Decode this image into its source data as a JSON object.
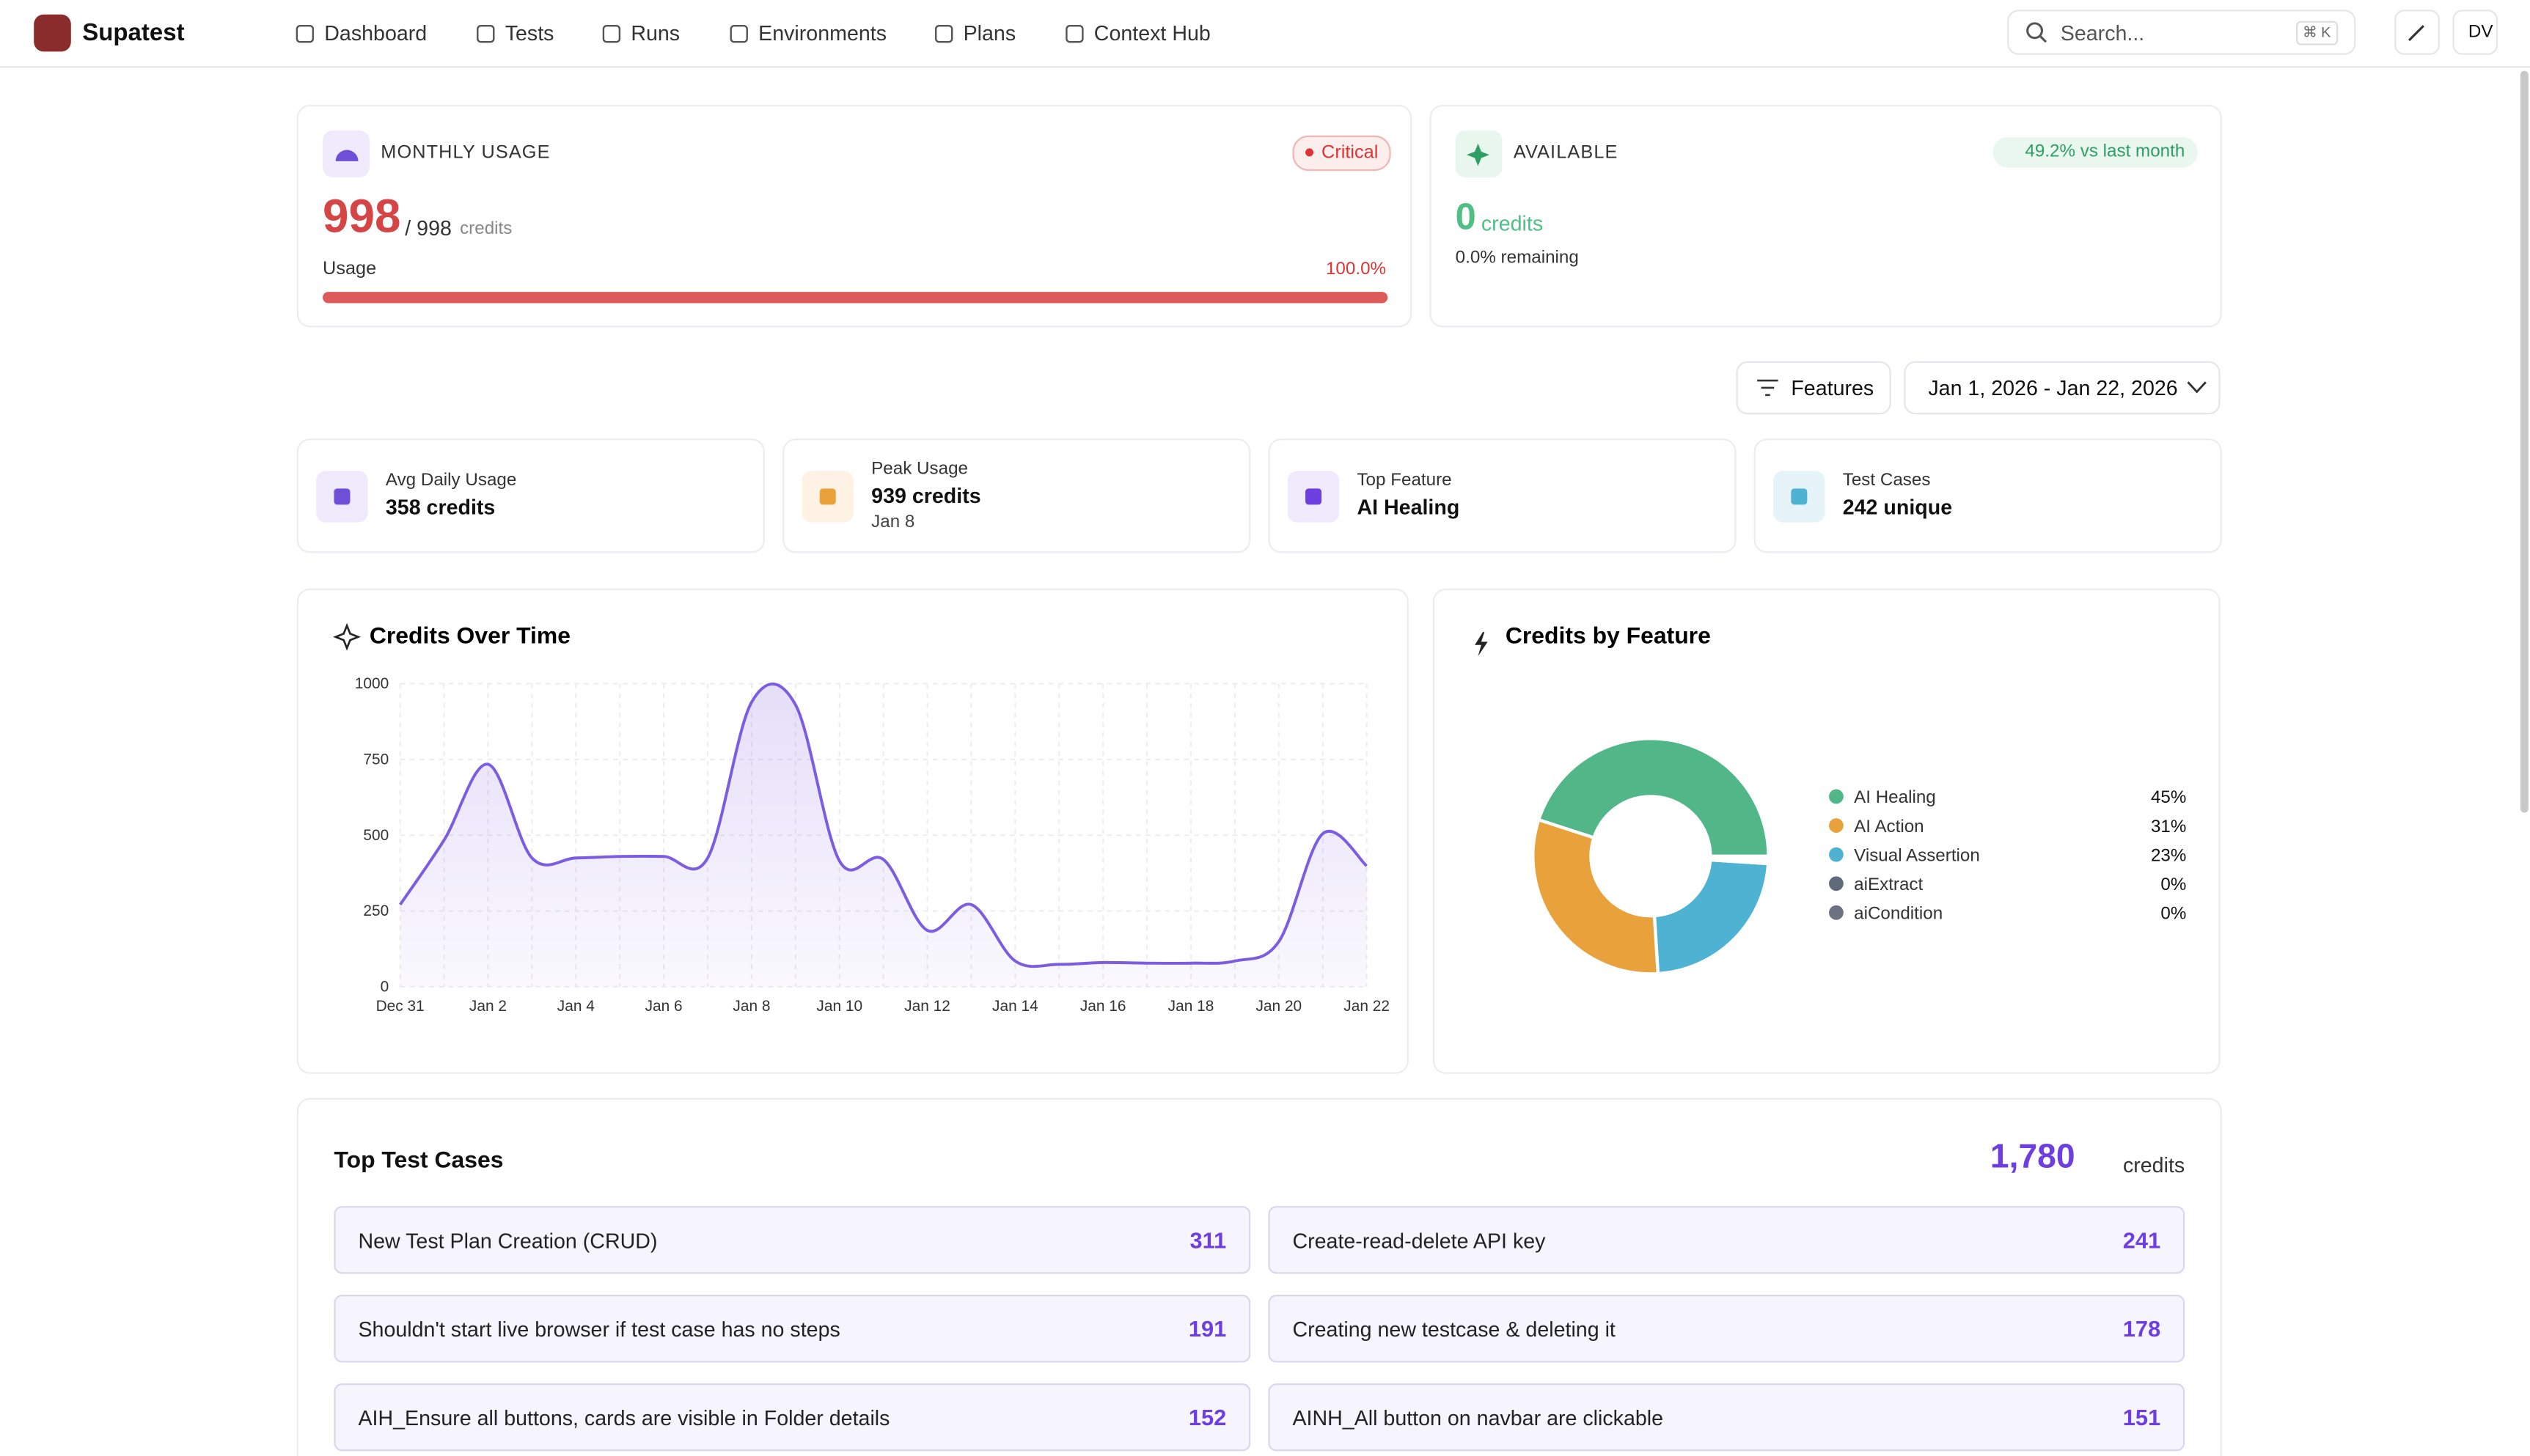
{
  "nav": {
    "brand": "Supatest",
    "items": [
      "Dashboard",
      "Tests",
      "Runs",
      "Environments",
      "Plans",
      "Context Hub"
    ],
    "search": "Search...",
    "shortcut": "⌘ K",
    "avatar": "DV"
  },
  "monthly_usage": {
    "title": "MONTHLY USAGE",
    "badge": "Critical",
    "used": 998,
    "limit_label": "/ 998",
    "unit": "credits",
    "usage_label": "Usage",
    "percent": {
      "value": 100,
      "label": "100.0%"
    }
  },
  "available": {
    "title": "AVAILABLE",
    "trend": "49.2% vs last month",
    "value": 0,
    "unit": "credits",
    "remaining": "0.0% remaining"
  },
  "filters": {
    "features": "Features",
    "date_range": "Jan 1, 2026 - Jan 22, 2026"
  },
  "stats": [
    {
      "label": "Avg Daily Usage",
      "value": "358 credits"
    },
    {
      "label": "Peak Usage",
      "value": "939 credits",
      "sub": "Jan 8"
    },
    {
      "label": "Top Feature",
      "value": "AI Healing"
    },
    {
      "label": "Test Cases",
      "value": "242 unique"
    }
  ],
  "chart_data": [
    {
      "type": "line",
      "title": "Credits Over Time",
      "categories": [
        "Dec 31",
        null,
        "Jan 2",
        null,
        "Jan 4",
        null,
        "Jan 6",
        null,
        "Jan 8",
        null,
        "Jan 10",
        null,
        "Jan 12",
        null,
        "Jan 14",
        null,
        "Jan 16",
        null,
        "Jan 18",
        null,
        "Jan 20",
        null,
        "Jan 22"
      ],
      "values": [
        271,
        484,
        734,
        425,
        425,
        430,
        430,
        425,
        939,
        930,
        415,
        420,
        186,
        271,
        85,
        74,
        80,
        78,
        78,
        85,
        149,
        505,
        399
      ],
      "color": "#7c5ce0",
      "ylim": [
        0,
        1000
      ],
      "yticks": [
        0,
        250,
        500,
        750,
        1000
      ],
      "grid": true
    },
    {
      "type": "pie",
      "title": "Credits by Feature",
      "categories": [
        "AI Healing",
        "AI Action",
        "Visual Assertion",
        "aiExtract",
        "aiCondition"
      ],
      "values": [
        45,
        31,
        23,
        0,
        0
      ],
      "value_labels": [
        "45%",
        "31%",
        "23%",
        "0%",
        "0%"
      ],
      "colors": [
        "#52b788",
        "#e9a23b",
        "#4eb3d3",
        "#5f6b7a",
        "#6b7280"
      ]
    }
  ],
  "top_tests": {
    "title": "Top Test Cases",
    "total": "1,780",
    "unit": "credits",
    "rows": [
      {
        "name": "New Test Plan Creation (CRUD)",
        "credits": 311
      },
      {
        "name": "Create-read-delete API key",
        "credits": 241
      },
      {
        "name": "Shouldn't start live browser if test case has no steps",
        "credits": 191
      },
      {
        "name": "Creating new testcase & deleting it",
        "credits": 178
      },
      {
        "name": "AIH_Ensure all buttons, cards are visible in Folder details",
        "credits": 152
      },
      {
        "name": "AINH_All button on navbar are clickable",
        "credits": 151
      }
    ]
  }
}
